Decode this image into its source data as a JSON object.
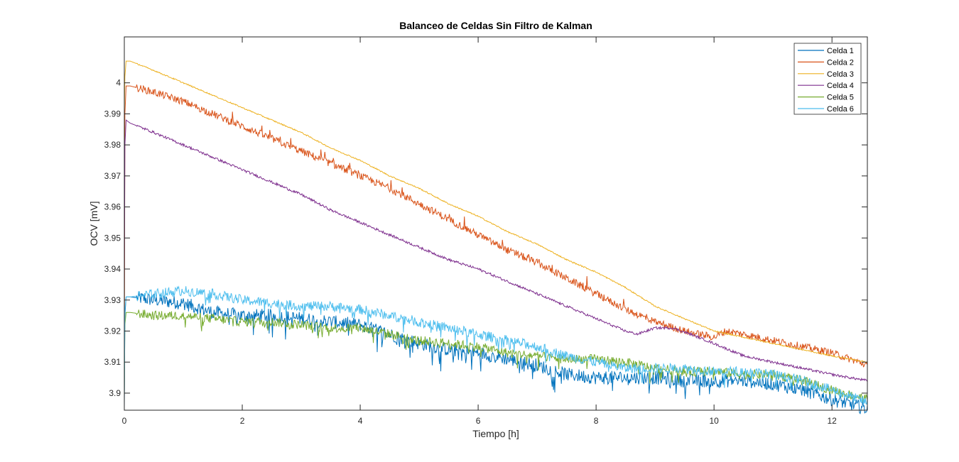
{
  "chart_data": {
    "type": "line",
    "title": "Balanceo de Celdas Sin Filtro de Kalman",
    "xlabel": "Tiempo [h]",
    "ylabel": "OCV [mV]",
    "xlim": [
      0,
      12.6
    ],
    "ylim": [
      3.8945,
      4.0148
    ],
    "xticks": [
      0,
      2,
      4,
      6,
      8,
      10,
      12
    ],
    "yticks": [
      3.9,
      3.91,
      3.92,
      3.93,
      3.94,
      3.95,
      3.96,
      3.97,
      3.98,
      3.99,
      4
    ],
    "xtick_labels": [
      "0",
      "2",
      "4",
      "6",
      "8",
      "10",
      "12"
    ],
    "ytick_labels": [
      "3.9",
      "3.91",
      "3.92",
      "3.93",
      "3.94",
      "3.95",
      "3.96",
      "3.97",
      "3.98",
      "3.99",
      "4"
    ],
    "grid": false,
    "legend_position": "top-right",
    "series": [
      {
        "name": "Celda 1",
        "color": "#0072BD",
        "x": [
          0,
          0.01,
          0.03,
          0.1,
          0.5,
          1.0,
          1.5,
          2.0,
          2.5,
          3.0,
          3.5,
          4.0,
          4.5,
          5.0,
          5.5,
          6.0,
          6.5,
          7.0,
          7.5,
          8.0,
          8.5,
          9.0,
          9.5,
          10.0,
          10.5,
          11.0,
          11.5,
          12.0,
          12.4,
          12.6
        ],
        "y": [
          3.895,
          3.925,
          3.931,
          3.931,
          3.93,
          3.929,
          3.926,
          3.925,
          3.925,
          3.924,
          3.923,
          3.922,
          3.919,
          3.916,
          3.914,
          3.913,
          3.911,
          3.909,
          3.906,
          3.905,
          3.905,
          3.905,
          3.904,
          3.904,
          3.904,
          3.903,
          3.901,
          3.898,
          3.896,
          3.895
        ]
      },
      {
        "name": "Celda 2",
        "color": "#D95319",
        "x": [
          0,
          0.01,
          0.03,
          0.1,
          0.5,
          1.0,
          1.5,
          2.0,
          2.5,
          3.0,
          3.5,
          4.0,
          4.5,
          5.0,
          5.5,
          6.0,
          6.5,
          7.0,
          7.5,
          8.0,
          8.5,
          9.0,
          9.5,
          10.0,
          10.2,
          10.5,
          11.0,
          11.5,
          12.0,
          12.6
        ],
        "y": [
          3.896,
          3.99,
          3.999,
          3.999,
          3.997,
          3.994,
          3.99,
          3.986,
          3.982,
          3.978,
          3.974,
          3.97,
          3.966,
          3.961,
          3.956,
          3.951,
          3.946,
          3.942,
          3.937,
          3.932,
          3.927,
          3.923,
          3.92,
          3.918,
          3.92,
          3.919,
          3.917,
          3.915,
          3.913,
          3.909
        ]
      },
      {
        "name": "Celda 3",
        "color": "#EDB120",
        "x": [
          0,
          0.01,
          0.03,
          0.1,
          0.5,
          1.0,
          1.5,
          2.0,
          2.5,
          3.0,
          3.5,
          4.0,
          4.5,
          5.0,
          5.5,
          6.0,
          6.5,
          7.0,
          7.5,
          8.0,
          8.5,
          9.0,
          9.5,
          10.0,
          10.5,
          11.0,
          11.5,
          12.0,
          12.6
        ],
        "y": [
          3.99,
          4.002,
          4.007,
          4.007,
          4.004,
          4.0,
          3.996,
          3.992,
          3.988,
          3.984,
          3.979,
          3.975,
          3.97,
          3.966,
          3.961,
          3.957,
          3.952,
          3.948,
          3.943,
          3.939,
          3.934,
          3.928,
          3.924,
          3.92,
          3.918,
          3.916,
          3.914,
          3.912,
          3.91
        ]
      },
      {
        "name": "Celda 4",
        "color": "#7E2F8E",
        "x": [
          0,
          0.01,
          0.03,
          0.1,
          0.5,
          1.0,
          1.5,
          2.0,
          2.5,
          3.0,
          3.5,
          4.0,
          4.5,
          5.0,
          5.5,
          6.0,
          6.5,
          7.0,
          7.5,
          8.0,
          8.5,
          8.7,
          9.0,
          9.3,
          9.6,
          10.0,
          10.5,
          11.0,
          11.5,
          12.0,
          12.6
        ],
        "y": [
          3.932,
          3.98,
          3.988,
          3.987,
          3.984,
          3.98,
          3.976,
          3.972,
          3.968,
          3.964,
          3.959,
          3.955,
          3.951,
          3.947,
          3.943,
          3.94,
          3.936,
          3.932,
          3.928,
          3.924,
          3.92,
          3.919,
          3.921,
          3.921,
          3.919,
          3.916,
          3.912,
          3.91,
          3.908,
          3.906,
          3.904
        ]
      },
      {
        "name": "Celda 5",
        "color": "#77AC30",
        "x": [
          0,
          0.01,
          0.03,
          0.1,
          0.5,
          1.0,
          1.5,
          2.0,
          2.5,
          3.0,
          3.5,
          4.0,
          4.5,
          5.0,
          5.5,
          6.0,
          6.5,
          7.0,
          7.5,
          8.0,
          8.5,
          9.0,
          9.5,
          10.0,
          10.5,
          11.0,
          11.5,
          12.0,
          12.6
        ],
        "y": [
          3.899,
          3.922,
          3.926,
          3.926,
          3.925,
          3.925,
          3.924,
          3.923,
          3.923,
          3.922,
          3.921,
          3.921,
          3.919,
          3.917,
          3.916,
          3.915,
          3.913,
          3.912,
          3.911,
          3.911,
          3.91,
          3.908,
          3.907,
          3.907,
          3.906,
          3.906,
          3.904,
          3.901,
          3.898
        ]
      },
      {
        "name": "Celda 6",
        "color": "#4DBEEE",
        "x": [
          0,
          0.01,
          0.03,
          0.1,
          0.5,
          1.0,
          1.5,
          2.0,
          2.5,
          3.0,
          3.5,
          4.0,
          4.5,
          5.0,
          5.5,
          6.0,
          6.5,
          7.0,
          7.5,
          8.0,
          8.5,
          9.0,
          9.5,
          10.0,
          10.5,
          11.0,
          11.5,
          12.0,
          12.6
        ],
        "y": [
          3.898,
          3.927,
          3.931,
          3.931,
          3.932,
          3.933,
          3.932,
          3.93,
          3.929,
          3.928,
          3.928,
          3.927,
          3.925,
          3.923,
          3.921,
          3.919,
          3.917,
          3.915,
          3.912,
          3.91,
          3.908,
          3.908,
          3.908,
          3.907,
          3.907,
          3.906,
          3.904,
          3.901,
          3.897
        ]
      }
    ]
  }
}
